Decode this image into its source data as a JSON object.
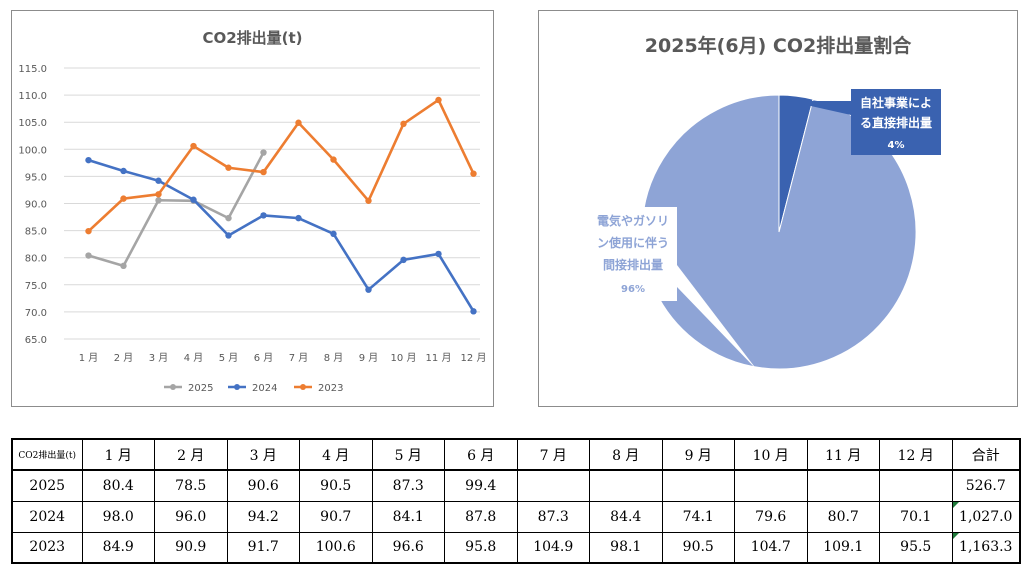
{
  "line_chart": {
    "title": "CO2排出量(t)"
  },
  "pie_chart": {
    "title": "2025年(6月) CO2排出量割合"
  },
  "chart_data": [
    {
      "type": "line",
      "title": "CO2排出量(t)",
      "categories": [
        "1 月",
        "2 月",
        "3 月",
        "4 月",
        "5 月",
        "6 月",
        "7 月",
        "8 月",
        "9 月",
        "10 月",
        "11 月",
        "12 月"
      ],
      "y_ticks": [
        "115.0",
        "110.0",
        "105.0",
        "100.0",
        "95.0",
        "90.0",
        "85.0",
        "80.0",
        "75.0",
        "70.0",
        "65.0"
      ],
      "ylim": [
        65,
        115
      ],
      "grid": true,
      "legend_position": "bottom",
      "series": [
        {
          "name": "2025",
          "color": "#a5a5a5",
          "values": [
            80.4,
            78.5,
            90.6,
            90.5,
            87.3,
            99.4,
            null,
            null,
            null,
            null,
            null,
            null
          ]
        },
        {
          "name": "2024",
          "color": "#4472c4",
          "values": [
            98.0,
            96.0,
            94.2,
            90.7,
            84.1,
            87.8,
            87.3,
            84.4,
            74.1,
            79.6,
            80.7,
            70.1
          ]
        },
        {
          "name": "2023",
          "color": "#ed7d31",
          "values": [
            84.9,
            90.9,
            91.7,
            100.6,
            96.6,
            95.8,
            104.9,
            98.1,
            90.5,
            104.7,
            109.1,
            95.5
          ]
        }
      ]
    },
    {
      "type": "pie",
      "title": "2025年(6月) CO2排出量割合",
      "slices": [
        {
          "label_lines": [
            "自社事業によ",
            "る直接排出量"
          ],
          "percent_label": "4%",
          "value": 4,
          "color": "#3a62b0"
        },
        {
          "label_lines": [
            "電気やガソリ",
            "ン使用に伴う",
            "間接排出量"
          ],
          "percent_label": "96%",
          "value": 96,
          "color": "#8ea4d6"
        }
      ]
    }
  ],
  "table": {
    "corner": "CO2排出量(t)",
    "headers": [
      "1 月",
      "2 月",
      "3 月",
      "4 月",
      "5 月",
      "6 月",
      "7 月",
      "8 月",
      "9 月",
      "10 月",
      "11 月",
      "12 月",
      "合計"
    ],
    "rows": [
      {
        "year": "2025",
        "cells": [
          "80.4",
          "78.5",
          "90.6",
          "90.5",
          "87.3",
          "99.4",
          "",
          "",
          "",
          "",
          "",
          ""
        ],
        "total": "526.7",
        "flag": false
      },
      {
        "year": "2024",
        "cells": [
          "98.0",
          "96.0",
          "94.2",
          "90.7",
          "84.1",
          "87.8",
          "87.3",
          "84.4",
          "74.1",
          "79.6",
          "80.7",
          "70.1"
        ],
        "total": "1,027.0",
        "flag": true
      },
      {
        "year": "2023",
        "cells": [
          "84.9",
          "90.9",
          "91.7",
          "100.6",
          "96.6",
          "95.8",
          "104.9",
          "98.1",
          "90.5",
          "104.7",
          "109.1",
          "95.5"
        ],
        "total": "1,163.3",
        "flag": true
      }
    ]
  }
}
